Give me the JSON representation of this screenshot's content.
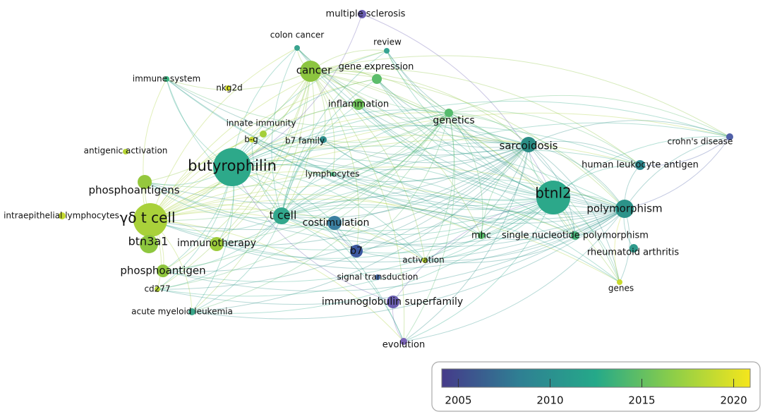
{
  "network": {
    "nodes": [
      {
        "label": "multiple sclerosis",
        "color": "#6b5fb2"
      },
      {
        "label": "colon cancer",
        "color": "#3aa38f"
      },
      {
        "label": "review",
        "color": "#36a391"
      },
      {
        "label": "cancer",
        "color": "#8cc53f"
      },
      {
        "label": "gene expression",
        "color": "#5cbd6a"
      },
      {
        "label": "immune system",
        "color": "#3db582"
      },
      {
        "label": "nkg2d",
        "color": "#d5de26"
      },
      {
        "label": "inflammation",
        "color": "#6ec25a"
      },
      {
        "label": "genetics",
        "color": "#55bb6c"
      },
      {
        "label": "innate immunity",
        "color": "#a4cf3a"
      },
      {
        "label": "b-g",
        "color": "#c8da2e"
      },
      {
        "label": "b7 family",
        "color": "#2f8f8d"
      },
      {
        "label": "antigenic activation",
        "color": "#b5d435"
      },
      {
        "label": "sarcoidosis",
        "color": "#2a8c84"
      },
      {
        "label": "crohn's disease",
        "color": "#5060a8"
      },
      {
        "label": "butyrophilin",
        "color": "#2da98a"
      },
      {
        "label": "human leukocyte antigen",
        "color": "#2f8a90"
      },
      {
        "label": "lymphocytes",
        "color": "#4ab67e"
      },
      {
        "label": "btnl2",
        "color": "#2ca88a"
      },
      {
        "label": "phosphoantigens",
        "color": "#95c83d"
      },
      {
        "label": "polymorphism",
        "color": "#2c9389"
      },
      {
        "label": "intraepithelial lymphocytes",
        "color": "#c3d830"
      },
      {
        "label": "t cell",
        "color": "#31a78c"
      },
      {
        "label": "γδ t cell",
        "color": "#a9d13a"
      },
      {
        "label": "costimulation",
        "color": "#3b7fa0"
      },
      {
        "label": "mhc",
        "color": "#56bb6a"
      },
      {
        "label": "single nucleotide polymorphism",
        "color": "#49b47a"
      },
      {
        "label": "btn3a1",
        "color": "#8ec73e"
      },
      {
        "label": "immunotherapy",
        "color": "#9dcb3b"
      },
      {
        "label": "b7",
        "color": "#3c58a0"
      },
      {
        "label": "rheumatoid arthritis",
        "color": "#2f9a8c"
      },
      {
        "label": "activation",
        "color": "#b6d336"
      },
      {
        "label": "phosphoantigen",
        "color": "#8fc63e"
      },
      {
        "label": "signal transduction",
        "color": "#4a6ea8"
      },
      {
        "label": "cd277",
        "color": "#b3d336"
      },
      {
        "label": "genes",
        "color": "#c9da2f"
      },
      {
        "label": "immunoglobulin superfamily",
        "color": "#6a5eb0"
      },
      {
        "label": "acute myeloid leukemia",
        "color": "#3aa68a"
      },
      {
        "label": "evolution",
        "color": "#7a63b6"
      }
    ]
  },
  "color_scale": {
    "range": [
      2004.1,
      2020.9
    ],
    "ticks": [
      2005,
      2010,
      2015,
      2020
    ],
    "colors": [
      "#453a8a",
      "#2f7f93",
      "#25a989",
      "#8dce48",
      "#f5e61c"
    ]
  }
}
